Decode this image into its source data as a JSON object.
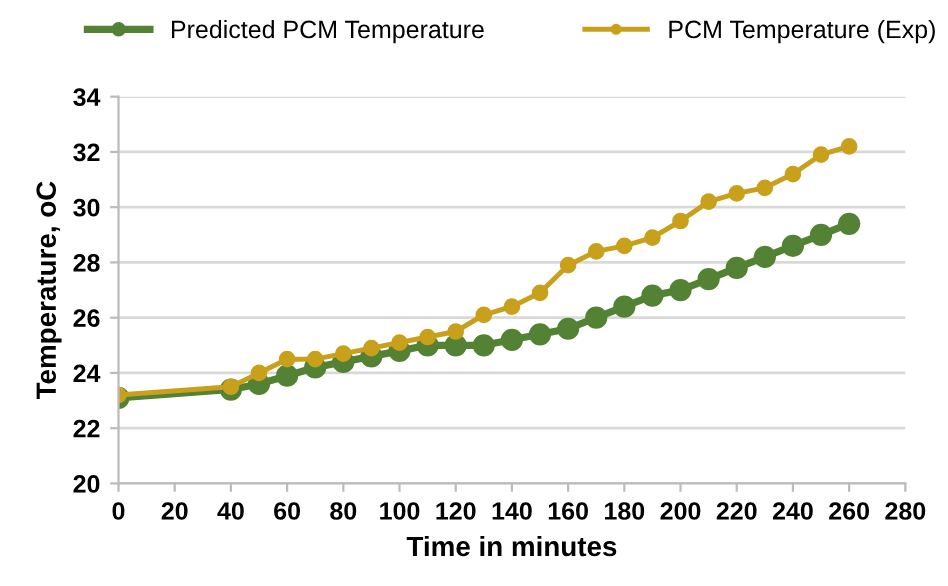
{
  "chart_data": {
    "type": "line",
    "xlabel": "Time in minutes",
    "ylabel": "Temperature, oC",
    "x": [
      0,
      40,
      50,
      60,
      70,
      80,
      90,
      100,
      110,
      120,
      130,
      140,
      150,
      160,
      170,
      180,
      190,
      200,
      210,
      220,
      230,
      240,
      250,
      260
    ],
    "series": [
      {
        "name": "Predicted PCM Temperature",
        "color": "#548235",
        "values": [
          23.1,
          23.4,
          23.6,
          23.9,
          24.2,
          24.4,
          24.6,
          24.8,
          25.0,
          25.0,
          25.0,
          25.2,
          25.4,
          25.6,
          26.0,
          26.4,
          26.8,
          27.0,
          27.4,
          27.8,
          28.2,
          28.6,
          29.0,
          29.4
        ]
      },
      {
        "name": "PCM Temperature (Exp)",
        "color": "#c9a01b",
        "values": [
          23.2,
          23.5,
          24.0,
          24.5,
          24.5,
          24.7,
          24.9,
          25.1,
          25.3,
          25.5,
          26.1,
          26.4,
          26.9,
          27.9,
          28.4,
          28.6,
          28.9,
          29.5,
          30.2,
          30.5,
          30.7,
          31.2,
          31.9,
          32.2
        ]
      }
    ],
    "xlim": [
      0,
      280
    ],
    "xticks": [
      0,
      20,
      40,
      60,
      80,
      100,
      120,
      140,
      160,
      180,
      200,
      220,
      240,
      260,
      280
    ],
    "ylim": [
      20,
      34
    ],
    "yticks": [
      20,
      22,
      24,
      26,
      28,
      30,
      32,
      34
    ],
    "grid": "y",
    "legend": "top",
    "marker": "circle",
    "line_style": "solid"
  }
}
